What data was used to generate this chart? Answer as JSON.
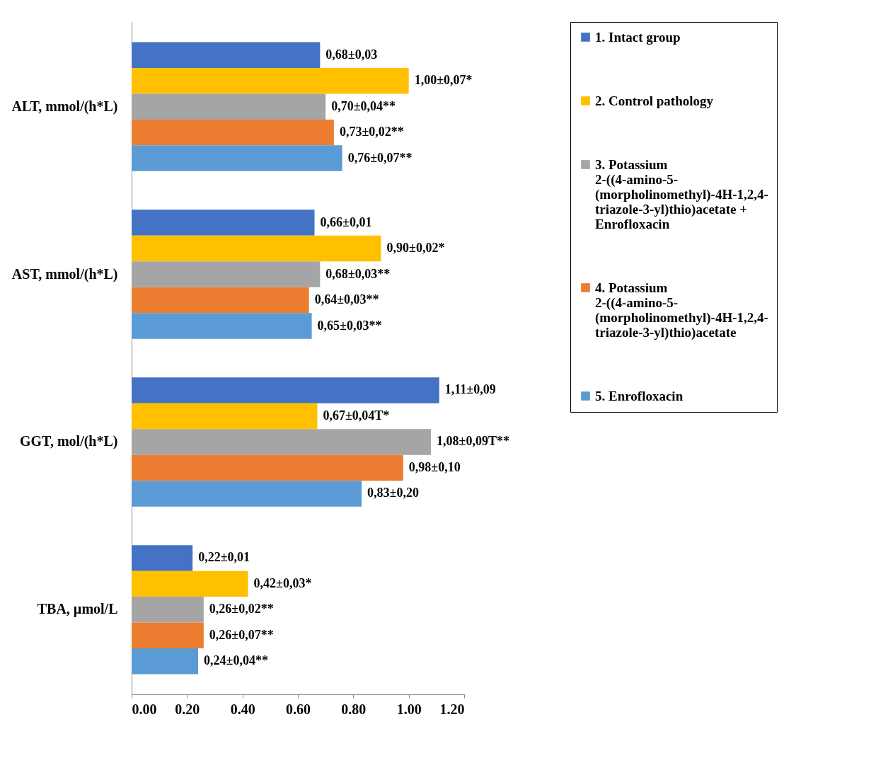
{
  "chart_data": {
    "type": "bar",
    "orientation": "horizontal",
    "categories": [
      "ALT, mmol/(h*L)",
      "AST, mmol/(h*L)",
      "GGT, mol/(h*L)",
      "TBA, µmol/L"
    ],
    "series": [
      {
        "name": "1. Intact group",
        "color": "#4472c4",
        "values": [
          0.68,
          0.66,
          1.11,
          0.22
        ],
        "value_labels": [
          "0,68±0,03",
          "0,66±0,01",
          "1,11±0,09",
          "0,22±0,01"
        ]
      },
      {
        "name": "2. Control pathology",
        "color": "#ffc000",
        "values": [
          1.0,
          0.9,
          0.67,
          0.42
        ],
        "value_labels": [
          "1,00±0,07*",
          "0,90±0,02*",
          "0,67±0,04T*",
          "0,42±0,03*"
        ]
      },
      {
        "name": "3. Potassium 2-((4-amino-5-(morpholinomethyl)-4H-1,2,4-triazole-3-yl)thio)acetate + Enrofloxacin",
        "color": "#a5a5a5",
        "values": [
          0.7,
          0.68,
          1.08,
          0.26
        ],
        "value_labels": [
          "0,70±0,04**",
          "0,68±0,03**",
          "1,08±0,09T**",
          "0,26±0,02**"
        ]
      },
      {
        "name": "4. Potassium 2-((4-amino-5-(morpholinomethyl)-4H-1,2,4-triazole-3-yl)thio)acetate",
        "color": "#ed7d31",
        "values": [
          0.73,
          0.64,
          0.98,
          0.26
        ],
        "value_labels": [
          "0,73±0,02**",
          "0,64±0,03**",
          "0,98±0,10",
          "0,26±0,07**"
        ]
      },
      {
        "name": "5. Enrofloxacin",
        "color": "#5b9bd5",
        "values": [
          0.76,
          0.65,
          0.83,
          0.24
        ],
        "value_labels": [
          "0,76±0,07**",
          "0,65±0,03**",
          "0,83±0,20",
          "0,24±0,04**"
        ]
      }
    ],
    "xlim": [
      0,
      1.2
    ],
    "xticks": [
      {
        "value": 0,
        "label": "0.00"
      },
      {
        "value": 0.2,
        "label": "0.20"
      },
      {
        "value": 0.4,
        "label": "0.40"
      },
      {
        "value": 0.6,
        "label": "0.60"
      },
      {
        "value": 0.8,
        "label": "0.80"
      },
      {
        "value": 1.0,
        "label": "1.00"
      },
      {
        "value": 1.2,
        "label": "1.20"
      }
    ],
    "grid": false,
    "legend": "right"
  }
}
